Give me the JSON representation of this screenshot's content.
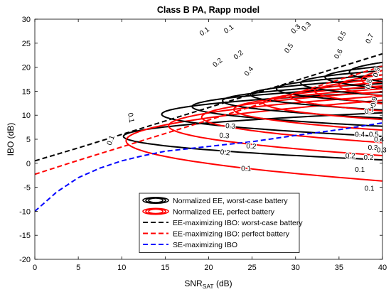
{
  "chart_data": {
    "type": "line",
    "title": "Class B PA, Rapp model",
    "xlabel": "SNR",
    "xlabel_sub": "SAT",
    "xlabel_unit": " (dB)",
    "ylabel": "IBO (dB)",
    "xlim": [
      0,
      40
    ],
    "ylim": [
      -20,
      30
    ],
    "xticks": [
      0,
      5,
      10,
      15,
      20,
      25,
      30,
      35,
      40
    ],
    "yticks": [
      -20,
      -15,
      -10,
      -5,
      0,
      5,
      10,
      15,
      20,
      25,
      30
    ],
    "grid": false,
    "legend_position": "lower-right",
    "legend": [
      {
        "label": "Normalized EE, worst-case battery",
        "color": "#000000",
        "style": "contour"
      },
      {
        "label": "Normalized EE, perfect battery",
        "color": "#ff0000",
        "style": "contour"
      },
      {
        "label": "EE-maximizing IBO: worst-case battery",
        "color": "#000000",
        "style": "dashed"
      },
      {
        "label": "EE-maximizing IBO: perfect battery",
        "color": "#ff0000",
        "style": "dashed"
      },
      {
        "label": "SE-maximizing IBO",
        "color": "#0000ff",
        "style": "dashed"
      }
    ],
    "series": [
      {
        "name": "EE-maximizing IBO: worst-case battery",
        "color": "#000000",
        "dash": true,
        "points": [
          [
            0,
            0.5
          ],
          [
            5,
            3.2
          ],
          [
            10,
            6.0
          ],
          [
            15,
            8.8
          ],
          [
            20,
            11.6
          ],
          [
            25,
            14.4
          ],
          [
            30,
            17.2
          ],
          [
            35,
            20.0
          ],
          [
            40,
            22.8
          ]
        ]
      },
      {
        "name": "EE-maximizing IBO: perfect battery",
        "color": "#ff0000",
        "dash": true,
        "points": [
          [
            0,
            -2.3
          ],
          [
            5,
            0.6
          ],
          [
            10,
            3.4
          ],
          [
            15,
            6.2
          ],
          [
            20,
            9.0
          ],
          [
            25,
            11.8
          ],
          [
            30,
            14.6
          ],
          [
            35,
            17.4
          ],
          [
            40,
            20.2
          ]
        ]
      },
      {
        "name": "SE-maximizing IBO",
        "color": "#0000ff",
        "dash": true,
        "points": [
          [
            0,
            -10.0
          ],
          [
            2.5,
            -6.0
          ],
          [
            5,
            -3.0
          ],
          [
            7.5,
            -1.0
          ],
          [
            10,
            0.5
          ],
          [
            12.5,
            1.6
          ],
          [
            15,
            2.5
          ],
          [
            20,
            3.5
          ],
          [
            25,
            4.5
          ],
          [
            30,
            5.8
          ],
          [
            35,
            7.0
          ],
          [
            40,
            8.4
          ]
        ]
      }
    ],
    "contours": [
      {
        "level": "0.1",
        "color": "#000000",
        "xs": 10.2,
        "yc": 5.6,
        "d": 4.9
      },
      {
        "level": "0.1",
        "color": "#ff0000",
        "xs": 10.5,
        "yc": 4.7,
        "d": 8.4
      },
      {
        "level": "0.2",
        "color": "#000000",
        "xs": 14.6,
        "yc": 10.2,
        "d": 4.6
      },
      {
        "level": "0.2",
        "color": "#ff0000",
        "xs": 15.4,
        "yc": 7.8,
        "d": 6.2
      },
      {
        "level": "0.3",
        "color": "#000000",
        "xs": 18.1,
        "yc": 11.8,
        "d": 4.1
      },
      {
        "level": "0.3",
        "color": "#ff0000",
        "xs": 19.2,
        "yc": 9.6,
        "d": 5.3
      },
      {
        "level": "0.4",
        "color": "#000000",
        "xs": 21.6,
        "yc": 13.0,
        "d": 3.6
      },
      {
        "level": "0.4",
        "color": "#ff0000",
        "xs": 22.9,
        "yc": 11.2,
        "d": 4.3
      },
      {
        "level": "0.5",
        "color": "#000000",
        "xs": 24.8,
        "yc": 14.3,
        "d": 3.2
      },
      {
        "level": "0.5",
        "color": "#ff0000",
        "xs": 26.3,
        "yc": 12.6,
        "d": 3.5
      },
      {
        "level": "0.6",
        "color": "#000000",
        "xs": 27.8,
        "yc": 15.5,
        "d": 2.9
      },
      {
        "level": "0.6",
        "color": "#ff0000",
        "xs": 29.4,
        "yc": 13.9,
        "d": 3.0
      },
      {
        "level": "0.7",
        "color": "#000000",
        "xs": 30.6,
        "yc": 16.7,
        "d": 2.6
      },
      {
        "level": "0.7",
        "color": "#ff0000",
        "xs": 32.2,
        "yc": 15.0,
        "d": 2.6
      },
      {
        "level": "0.8",
        "color": "#000000",
        "xs": 33.4,
        "yc": 17.9,
        "d": 2.3
      },
      {
        "level": "0.8",
        "color": "#ff0000",
        "xs": 35.0,
        "yc": 16.2,
        "d": 2.2
      },
      {
        "level": "0.9",
        "color": "#000000",
        "xs": 36.2,
        "yc": 19.0,
        "d": 2.0
      },
      {
        "level": "0.9",
        "color": "#ff0000",
        "xs": 37.6,
        "yc": 17.4,
        "d": 1.9
      }
    ],
    "contour_labels": [
      {
        "text": "0.1",
        "x": 19.5,
        "y": 27.5,
        "angle": 35
      },
      {
        "text": "0.1",
        "x": 22.3,
        "y": 28.0,
        "angle": 35
      },
      {
        "text": "0.2",
        "x": 21.0,
        "y": 21.0,
        "angle": 40
      },
      {
        "text": "0.2",
        "x": 23.4,
        "y": 22.6,
        "angle": 40
      },
      {
        "text": "0.3",
        "x": 30.0,
        "y": 28.0,
        "angle": 45
      },
      {
        "text": "0.3",
        "x": 31.2,
        "y": 28.5,
        "angle": 45
      },
      {
        "text": "0.4",
        "x": 24.6,
        "y": 19.2,
        "angle": 50
      },
      {
        "text": "0.5",
        "x": 29.2,
        "y": 24.0,
        "angle": 55
      },
      {
        "text": "0.5",
        "x": 35.3,
        "y": 26.5,
        "angle": 60
      },
      {
        "text": "0.6",
        "x": 34.9,
        "y": 22.8,
        "angle": 60
      },
      {
        "text": "0.7",
        "x": 38.5,
        "y": 26.0,
        "angle": 65
      },
      {
        "text": "0.9",
        "x": 39.3,
        "y": 19.0,
        "angle": 75
      },
      {
        "text": "0.8",
        "x": 38.4,
        "y": 16.5,
        "angle": 80
      },
      {
        "text": "0.9",
        "x": 39.0,
        "y": 12.8,
        "angle": 80
      },
      {
        "text": "0.7",
        "x": 38.5,
        "y": 11.0,
        "angle": 15
      },
      {
        "text": "0.1",
        "x": 11.1,
        "y": 9.5,
        "angle": -80
      },
      {
        "text": "0.1",
        "x": 8.7,
        "y": 4.8,
        "angle": 70
      },
      {
        "text": "0.3",
        "x": 22.5,
        "y": 7.8,
        "angle": -5
      },
      {
        "text": "0.3",
        "x": 21.8,
        "y": 5.8,
        "angle": -5
      },
      {
        "text": "0.2",
        "x": 24.9,
        "y": 3.6,
        "angle": -5
      },
      {
        "text": "0.2",
        "x": 21.9,
        "y": 2.3,
        "angle": -5
      },
      {
        "text": "0.4",
        "x": 37.4,
        "y": 6.0,
        "angle": 0
      },
      {
        "text": "0.5",
        "x": 39.0,
        "y": 6.0,
        "angle": 0
      },
      {
        "text": "0.4",
        "x": 39.6,
        "y": 5.0,
        "angle": 0
      },
      {
        "text": "0.3",
        "x": 38.9,
        "y": 3.3,
        "angle": 0
      },
      {
        "text": "0.3",
        "x": 39.9,
        "y": 2.8,
        "angle": 0
      },
      {
        "text": "0.2",
        "x": 36.3,
        "y": 1.6,
        "angle": 0
      },
      {
        "text": "0.2",
        "x": 38.4,
        "y": 1.2,
        "angle": 0
      },
      {
        "text": "0.1",
        "x": 24.3,
        "y": -1.1,
        "angle": 0
      },
      {
        "text": "0.1",
        "x": 37.4,
        "y": -1.3,
        "angle": 0
      },
      {
        "text": "0.1",
        "x": 38.5,
        "y": -5.2,
        "angle": 0
      }
    ]
  }
}
